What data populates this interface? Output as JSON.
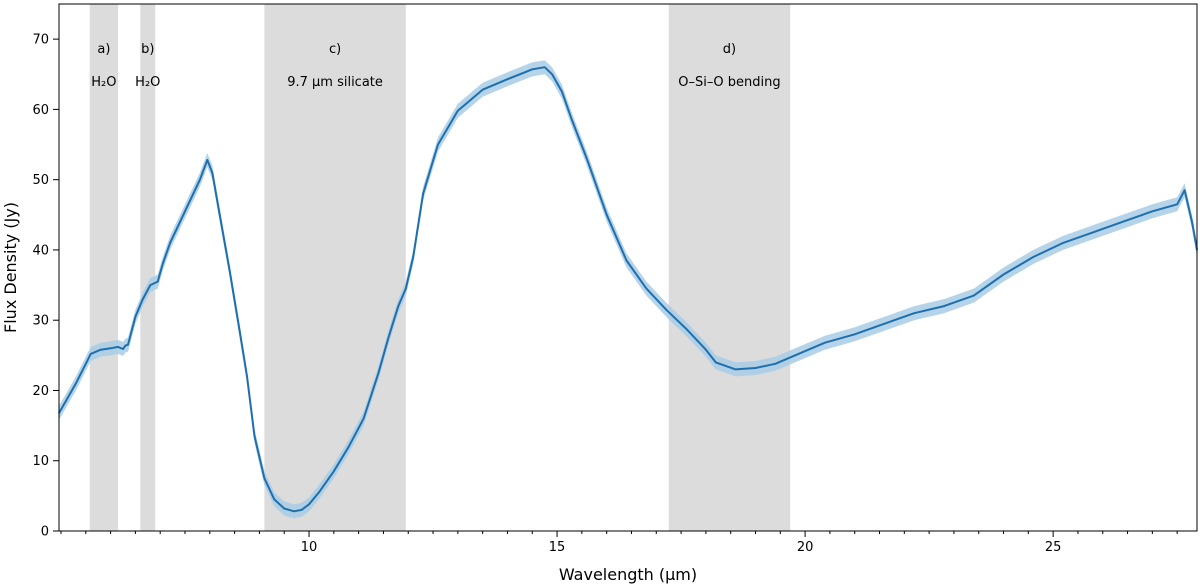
{
  "chart_data": {
    "type": "line",
    "title": "",
    "xlabel": "Wavelength (μm)",
    "ylabel": "Flux Density (Jy)",
    "xlim": [
      4.96,
      27.9
    ],
    "ylim": [
      0,
      75
    ],
    "x_major_ticks": [
      10,
      15,
      20,
      25
    ],
    "x_minor_step": 0.5,
    "y_ticks": [
      0,
      10,
      20,
      30,
      40,
      50,
      60,
      70
    ],
    "grid": false,
    "series": [
      {
        "color": "#1f6fad",
        "band_color": "#a8cce6",
        "x": [
          4.96,
          5.1,
          5.3,
          5.5,
          5.6,
          5.8,
          6.0,
          6.15,
          6.25,
          6.3,
          6.35,
          6.5,
          6.65,
          6.8,
          6.95,
          7.05,
          7.2,
          7.5,
          7.8,
          7.95,
          8.05,
          8.2,
          8.4,
          8.6,
          8.75,
          8.9,
          9.1,
          9.3,
          9.5,
          9.7,
          9.85,
          10.0,
          10.2,
          10.5,
          10.8,
          11.1,
          11.4,
          11.6,
          11.8,
          11.95,
          12.1,
          12.3,
          12.6,
          13.0,
          13.5,
          14.0,
          14.5,
          14.75,
          14.9,
          15.1,
          15.3,
          15.6,
          16.0,
          16.4,
          16.8,
          17.2,
          17.6,
          18.0,
          18.2,
          18.6,
          19.0,
          19.4,
          19.8,
          20.4,
          21.0,
          21.6,
          22.2,
          22.8,
          23.4,
          24.0,
          24.6,
          25.2,
          25.8,
          26.4,
          27.0,
          27.5,
          27.65,
          27.8,
          27.9
        ],
        "y": [
          16.8,
          18.5,
          21.0,
          23.8,
          25.2,
          25.8,
          26.0,
          26.2,
          25.9,
          26.4,
          26.5,
          30.5,
          33.0,
          35.0,
          35.5,
          38.0,
          41.0,
          45.5,
          50.0,
          52.8,
          51.0,
          45.0,
          37.0,
          28.5,
          22.0,
          13.5,
          7.5,
          4.5,
          3.2,
          2.8,
          3.0,
          3.8,
          5.5,
          8.5,
          12.0,
          16.0,
          22.5,
          27.5,
          32.0,
          34.5,
          39.0,
          48.0,
          55.0,
          59.8,
          62.8,
          64.3,
          65.7,
          66.0,
          65.0,
          62.5,
          58.5,
          53.0,
          45.0,
          38.5,
          34.5,
          31.5,
          28.8,
          25.8,
          24.0,
          23.0,
          23.2,
          23.8,
          25.0,
          26.8,
          28.0,
          29.5,
          31.0,
          32.0,
          33.5,
          36.5,
          39.0,
          41.0,
          42.5,
          44.0,
          45.5,
          46.5,
          48.5,
          44.0,
          40.0
        ],
        "uncertainty_jy": 1.0
      }
    ],
    "shaded_regions": [
      {
        "x0": 5.58,
        "x1": 6.15,
        "label": "a)",
        "sublabel": "H₂O"
      },
      {
        "x0": 6.6,
        "x1": 6.9,
        "label": "b)",
        "sublabel": "H₂O"
      },
      {
        "x0": 9.1,
        "x1": 11.95,
        "label": "c)",
        "sublabel": "9.7 μm silicate"
      },
      {
        "x0": 17.25,
        "x1": 19.7,
        "label": "d)",
        "sublabel": "O–Si–O bending"
      }
    ],
    "region_color": "#dcdcdc"
  }
}
